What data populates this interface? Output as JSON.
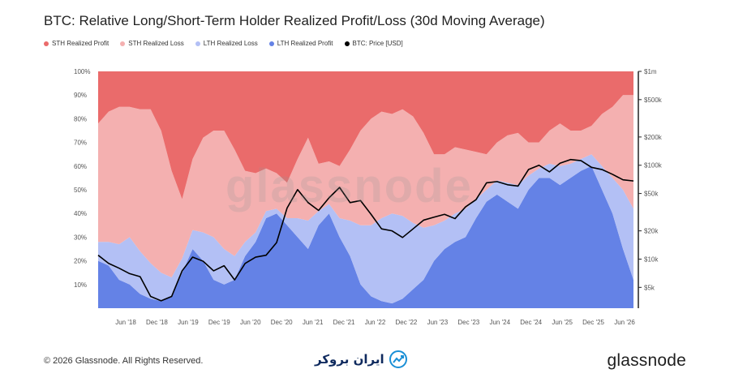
{
  "title": "BTC: Relative Long/Short-Term Holder Realized Profit/Loss (30d Moving Average)",
  "legend": [
    {
      "label": "STH Realized Profit",
      "color": "#ea6b6b"
    },
    {
      "label": "STH Realized Loss",
      "color": "#f4b0b0"
    },
    {
      "label": "LTH Realized Loss",
      "color": "#b3c0f5"
    },
    {
      "label": "LTH Realized Profit",
      "color": "#6482e6"
    },
    {
      "label": "BTC: Price [USD]",
      "color": "#000000"
    }
  ],
  "watermark": "glassnode",
  "footer": {
    "copyright": "© 2026 Glassnode. All Rights Reserved.",
    "center_brand": "ایران بروکر",
    "right_brand": "glassnode"
  },
  "chart_data": {
    "type": "area",
    "stacked": true,
    "x": [
      "Jan 18",
      "Mar 18",
      "May 18",
      "Jul 18",
      "Sep 18",
      "Nov 18",
      "Jan 19",
      "Mar 19",
      "May 19",
      "Jul 19",
      "Sep 19",
      "Nov 19",
      "Jan 20",
      "Mar 20",
      "May 20",
      "Jul 20",
      "Sep 20",
      "Nov 20",
      "Jan 21",
      "Mar 21",
      "May 21",
      "Jul 21",
      "Sep 21",
      "Nov 21",
      "Jan 22",
      "Mar 22",
      "May 22",
      "Jul 22",
      "Sep 22",
      "Nov 22",
      "Jan 23",
      "Mar 23",
      "May 23",
      "Jul 23",
      "Sep 23",
      "Nov 23",
      "Jan 24",
      "Mar 24",
      "May 24",
      "Jul 24",
      "Sep 24",
      "Nov 24",
      "Jan 25",
      "Mar 25",
      "May 25",
      "Jul 25",
      "Sep 25",
      "Nov 25",
      "Jan 26",
      "Mar 26",
      "May 26",
      "Jul 26"
    ],
    "x_tick_labels": [
      "Jun '18",
      "Dec '18",
      "Jun '19",
      "Dec '19",
      "Jun '20",
      "Dec '20",
      "Jun '21",
      "Dec '21",
      "Jun '22",
      "Dec '22",
      "Jun '23",
      "Dec '23",
      "Jun '24",
      "Dec '24",
      "Jun '25",
      "Dec '25",
      "Jun '26"
    ],
    "y_left_ticks": [
      "10%",
      "20%",
      "30%",
      "40%",
      "50%",
      "60%",
      "70%",
      "80%",
      "90%",
      "100%"
    ],
    "y_right_ticks": [
      "$5k",
      "$10k",
      "$20k",
      "$50k",
      "$100k",
      "$200k",
      "$500k",
      "$1m"
    ],
    "ylim_left": [
      0,
      100
    ],
    "ylim_right": [
      3000,
      1000000
    ],
    "y_right_scale": "log",
    "series": [
      {
        "name": "LTH Realized Profit",
        "color": "#6482e6",
        "values": [
          20,
          18,
          12,
          10,
          6,
          4,
          3,
          5,
          15,
          25,
          20,
          12,
          10,
          12,
          22,
          28,
          38,
          40,
          35,
          30,
          25,
          35,
          40,
          30,
          22,
          10,
          5,
          3,
          2,
          4,
          8,
          12,
          20,
          25,
          28,
          30,
          38,
          45,
          48,
          45,
          42,
          50,
          55,
          55,
          52,
          55,
          58,
          60,
          50,
          40,
          25,
          12
        ]
      },
      {
        "name": "LTH Realized Loss",
        "color": "#b3c0f5",
        "values": [
          8,
          10,
          15,
          20,
          18,
          15,
          12,
          8,
          6,
          8,
          12,
          18,
          15,
          10,
          6,
          4,
          3,
          2,
          3,
          8,
          12,
          6,
          4,
          8,
          15,
          25,
          30,
          35,
          38,
          35,
          28,
          22,
          15,
          12,
          12,
          12,
          8,
          5,
          6,
          8,
          10,
          6,
          4,
          6,
          8,
          6,
          5,
          5,
          10,
          15,
          25,
          30
        ]
      },
      {
        "name": "STH Realized Loss",
        "color": "#f4b0b0",
        "values": [
          50,
          55,
          58,
          55,
          60,
          65,
          60,
          45,
          25,
          30,
          40,
          45,
          50,
          45,
          30,
          25,
          18,
          15,
          15,
          25,
          35,
          20,
          18,
          22,
          30,
          40,
          45,
          45,
          42,
          45,
          45,
          40,
          30,
          28,
          28,
          25,
          20,
          15,
          16,
          20,
          22,
          14,
          11,
          14,
          18,
          14,
          12,
          12,
          22,
          30,
          40,
          48
        ]
      },
      {
        "name": "STH Realized Profit",
        "color": "#ea6b6b",
        "values": [
          22,
          17,
          15,
          15,
          16,
          16,
          25,
          42,
          54,
          37,
          28,
          25,
          25,
          33,
          42,
          43,
          41,
          43,
          47,
          37,
          28,
          39,
          38,
          40,
          33,
          25,
          20,
          17,
          18,
          16,
          19,
          26,
          35,
          35,
          32,
          33,
          34,
          35,
          30,
          27,
          26,
          30,
          30,
          25,
          22,
          25,
          25,
          23,
          18,
          15,
          10,
          10
        ]
      },
      {
        "name": "BTC: Price [USD]",
        "color": "#000000",
        "values": [
          11000,
          9000,
          8000,
          7000,
          6500,
          4000,
          3600,
          4000,
          7500,
          10500,
          9500,
          7500,
          8500,
          6000,
          9000,
          10500,
          11000,
          15000,
          35000,
          55000,
          40000,
          33000,
          45000,
          58000,
          40000,
          42000,
          30000,
          21000,
          20000,
          17000,
          21000,
          26000,
          28000,
          30000,
          27000,
          36000,
          43000,
          65000,
          67000,
          62000,
          60000,
          90000,
          100000,
          85000,
          105000,
          115000,
          112000,
          95000,
          90000,
          80000,
          70000,
          68000
        ]
      }
    ]
  }
}
